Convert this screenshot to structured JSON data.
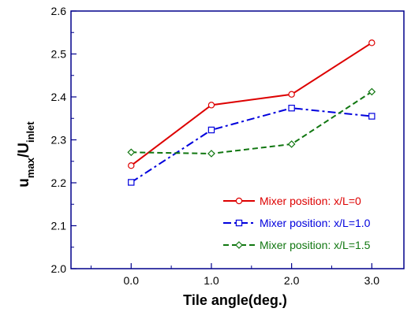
{
  "chart_data": {
    "type": "line",
    "x": [
      0.0,
      1.0,
      2.0,
      3.0
    ],
    "xticks": [
      "0.0",
      "1.0",
      "2.0",
      "3.0"
    ],
    "xlim": [
      -0.75,
      3.4
    ],
    "yticks": [
      "2.0",
      "2.1",
      "2.2",
      "2.3",
      "2.4",
      "2.5",
      "2.6"
    ],
    "ylim": [
      2.0,
      2.6
    ],
    "xlabel": "Tile angle(deg.)",
    "ylabel": {
      "u": "u",
      "u_sub": "max",
      "slash": "/",
      "U": "U",
      "U_sub": "inlet"
    },
    "legend_position": "bottom-right",
    "series": [
      {
        "name": "Mixer position: x/L=0",
        "values": [
          2.24,
          2.381,
          2.406,
          2.526
        ],
        "color": "#dd0000",
        "marker": "circle",
        "dash": "solid"
      },
      {
        "name": "Mixer position: x/L=1.0",
        "values": [
          2.201,
          2.323,
          2.374,
          2.355
        ],
        "color": "#0000dd",
        "marker": "square",
        "dash": "dashdot"
      },
      {
        "name": "Mixer position: x/L=1.5",
        "values": [
          2.271,
          2.268,
          2.29,
          2.412
        ],
        "color": "#117711",
        "marker": "diamond",
        "dash": "dashed"
      }
    ],
    "axis_color": "#00008b"
  }
}
